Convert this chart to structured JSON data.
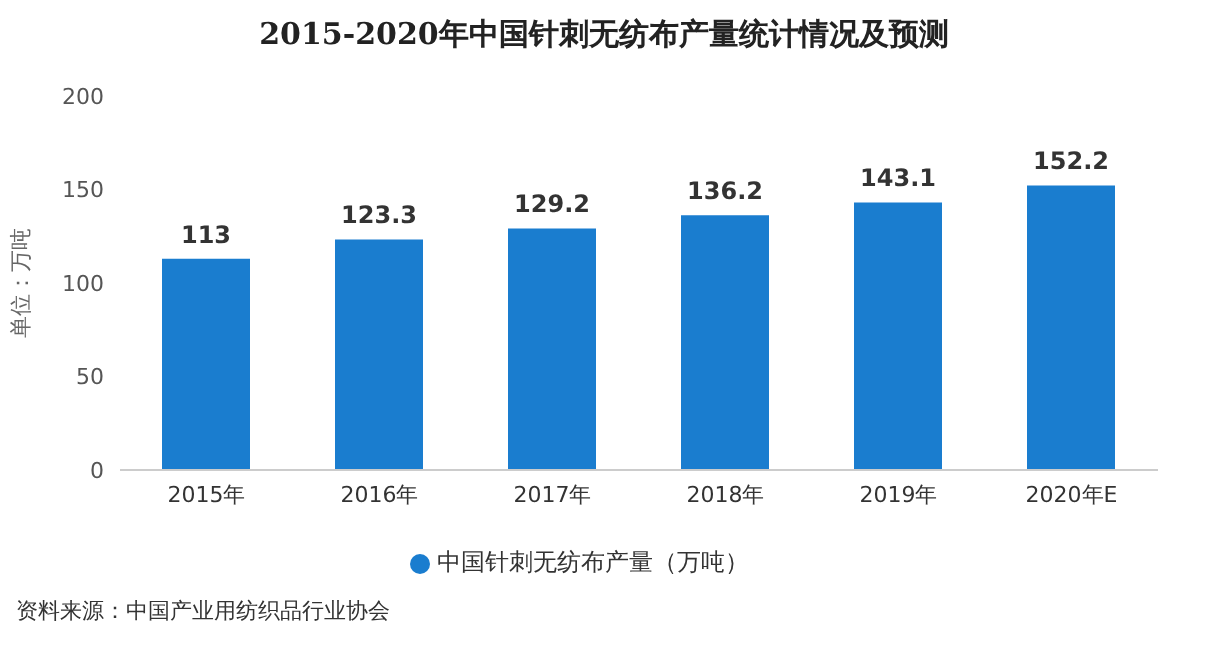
{
  "chart_data": {
    "type": "bar",
    "title": "2015-2020年中国针刺无纺布产量统计情况及预测",
    "ylabel": "单位：万吨",
    "categories": [
      "2015年",
      "2016年",
      "2017年",
      "2018年",
      "2019年",
      "2020年E"
    ],
    "series": [
      {
        "name": "中国针刺无纺布产量（万吨）",
        "color": "#1a7dcf",
        "values": [
          113,
          123.3,
          129.2,
          136.2,
          143.1,
          152.2
        ]
      }
    ],
    "ylim": [
      0,
      200
    ],
    "yticks": [
      0,
      50,
      100,
      150,
      200
    ],
    "data_labels": true,
    "legend": "bottom",
    "annotations": [
      "资料来源：中国产业用纺织品行业协会"
    ]
  }
}
